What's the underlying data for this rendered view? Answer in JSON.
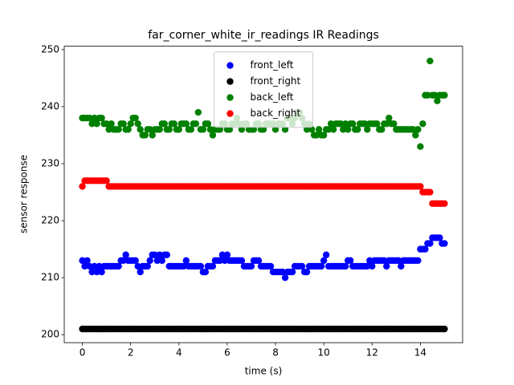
{
  "chart_data": {
    "type": "scatter",
    "title": "far_corner_white_ir_readings IR Readings",
    "x_label": "time (s)",
    "y_label": "sensor response",
    "xlim": [
      -0.75,
      15.75
    ],
    "ylim": [
      198.6,
      250.6
    ],
    "xticks": [
      0,
      2,
      4,
      6,
      8,
      10,
      12,
      14
    ],
    "yticks": [
      200,
      210,
      220,
      230,
      240,
      250
    ],
    "grid": false,
    "legend_position": "upper center",
    "x": [
      0,
      0.1,
      0.2,
      0.3,
      0.4,
      0.5,
      0.6,
      0.7,
      0.8,
      0.9,
      1,
      1.1,
      1.2,
      1.3,
      1.4,
      1.5,
      1.6,
      1.7,
      1.8,
      1.9,
      2,
      2.1,
      2.2,
      2.3,
      2.4,
      2.5,
      2.6,
      2.7,
      2.8,
      2.9,
      3,
      3.1,
      3.2,
      3.3,
      3.4,
      3.5,
      3.6,
      3.7,
      3.8,
      3.9,
      4,
      4.1,
      4.2,
      4.3,
      4.4,
      4.5,
      4.6,
      4.7,
      4.8,
      4.9,
      5,
      5.1,
      5.2,
      5.3,
      5.4,
      5.5,
      5.6,
      5.7,
      5.8,
      5.9,
      6,
      6.1,
      6.2,
      6.3,
      6.4,
      6.5,
      6.6,
      6.7,
      6.8,
      6.9,
      7,
      7.1,
      7.2,
      7.3,
      7.4,
      7.5,
      7.6,
      7.7,
      7.8,
      7.9,
      8,
      8.1,
      8.2,
      8.3,
      8.4,
      8.5,
      8.6,
      8.7,
      8.8,
      8.9,
      9,
      9.1,
      9.2,
      9.3,
      9.4,
      9.5,
      9.6,
      9.7,
      9.8,
      9.9,
      10,
      10.1,
      10.2,
      10.3,
      10.4,
      10.5,
      10.6,
      10.7,
      10.8,
      10.9,
      11,
      11.1,
      11.2,
      11.3,
      11.4,
      11.5,
      11.6,
      11.7,
      11.8,
      11.9,
      12,
      12.1,
      12.2,
      12.3,
      12.4,
      12.5,
      12.6,
      12.7,
      12.8,
      12.9,
      13,
      13.1,
      13.2,
      13.3,
      13.4,
      13.5,
      13.6,
      13.7,
      13.8,
      13.9,
      14,
      14.1,
      14.2,
      14.3,
      14.4,
      14.5,
      14.6,
      14.7,
      14.8,
      14.9,
      15
    ],
    "series": [
      {
        "name": "front_left",
        "color": "#0000ff",
        "values": [
          213,
          212,
          213,
          212,
          211,
          212,
          211,
          212,
          211,
          212,
          212,
          212,
          212,
          212,
          212,
          212,
          213,
          213,
          214,
          213,
          213,
          213,
          213,
          212,
          211,
          212,
          212,
          212,
          213,
          214,
          214,
          213,
          214,
          213,
          214,
          214,
          212,
          212,
          212,
          212,
          212,
          212,
          212,
          213,
          212,
          212,
          212,
          212,
          212,
          212,
          211,
          211,
          212,
          212,
          212,
          213,
          213,
          213,
          214,
          213,
          214,
          213,
          213,
          213,
          213,
          213,
          213,
          212,
          212,
          212,
          212,
          213,
          213,
          213,
          212,
          212,
          212,
          212,
          212,
          211,
          211,
          211,
          211,
          211,
          210,
          211,
          211,
          211,
          212,
          212,
          212,
          212,
          211,
          211,
          212,
          212,
          212,
          212,
          212,
          212,
          213,
          214,
          212,
          212,
          212,
          212,
          212,
          212,
          212,
          212,
          213,
          213,
          212,
          212,
          212,
          212,
          212,
          212,
          212,
          213,
          212,
          213,
          213,
          213,
          213,
          213,
          212,
          213,
          213,
          213,
          213,
          213,
          212,
          213,
          213,
          213,
          213,
          213,
          213,
          213,
          215,
          215,
          215,
          216,
          216,
          217,
          217,
          217,
          217,
          216,
          216
        ]
      },
      {
        "name": "front_right",
        "color": "#000000",
        "values": [
          201,
          201,
          201,
          201,
          201,
          201,
          201,
          201,
          201,
          201,
          201,
          201,
          201,
          201,
          201,
          201,
          201,
          201,
          201,
          201,
          201,
          201,
          201,
          201,
          201,
          201,
          201,
          201,
          201,
          201,
          201,
          201,
          201,
          201,
          201,
          201,
          201,
          201,
          201,
          201,
          201,
          201,
          201,
          201,
          201,
          201,
          201,
          201,
          201,
          201,
          201,
          201,
          201,
          201,
          201,
          201,
          201,
          201,
          201,
          201,
          201,
          201,
          201,
          201,
          201,
          201,
          201,
          201,
          201,
          201,
          201,
          201,
          201,
          201,
          201,
          201,
          201,
          201,
          201,
          201,
          201,
          201,
          201,
          201,
          201,
          201,
          201,
          201,
          201,
          201,
          201,
          201,
          201,
          201,
          201,
          201,
          201,
          201,
          201,
          201,
          201,
          201,
          201,
          201,
          201,
          201,
          201,
          201,
          201,
          201,
          201,
          201,
          201,
          201,
          201,
          201,
          201,
          201,
          201,
          201,
          201,
          201,
          201,
          201,
          201,
          201,
          201,
          201,
          201,
          201,
          201,
          201,
          201,
          201,
          201,
          201,
          201,
          201,
          201,
          201,
          201,
          201,
          201,
          201,
          201,
          201,
          201,
          201,
          201,
          201,
          201
        ]
      },
      {
        "name": "back_left",
        "color": "#008000",
        "values": [
          238,
          238,
          238,
          238,
          237,
          238,
          237,
          238,
          238,
          237,
          237,
          236,
          237,
          236,
          236,
          236,
          237,
          237,
          236,
          236,
          237,
          238,
          238,
          237,
          236,
          235,
          235,
          236,
          236,
          235,
          236,
          236,
          236,
          237,
          237,
          236,
          236,
          237,
          237,
          236,
          236,
          237,
          237,
          237,
          236,
          236,
          237,
          237,
          239,
          236,
          236,
          237,
          237,
          236,
          235,
          236,
          236,
          236,
          237,
          237,
          236,
          236,
          237,
          237,
          238,
          237,
          236,
          237,
          237,
          236,
          236,
          236,
          237,
          237,
          236,
          236,
          237,
          237,
          237,
          237,
          236,
          237,
          237,
          237,
          236,
          238,
          238,
          237,
          238,
          239,
          239,
          238,
          237,
          236,
          237,
          236,
          235,
          235,
          236,
          235,
          235,
          236,
          236,
          237,
          236,
          237,
          237,
          237,
          236,
          237,
          236,
          237,
          237,
          236,
          236,
          237,
          237,
          237,
          236,
          237,
          237,
          237,
          237,
          236,
          236,
          237,
          237,
          238,
          237,
          237,
          236,
          236,
          236,
          236,
          236,
          236,
          236,
          236,
          235,
          236,
          233,
          237,
          242,
          242,
          248,
          242,
          242,
          241,
          242,
          242,
          242
        ]
      },
      {
        "name": "back_right",
        "color": "#ff0000",
        "values": [
          226,
          227,
          227,
          227,
          227,
          227,
          227,
          227,
          227,
          227,
          227,
          226,
          226,
          226,
          226,
          226,
          226,
          226,
          226,
          226,
          226,
          226,
          226,
          226,
          226,
          226,
          226,
          226,
          226,
          226,
          226,
          226,
          226,
          226,
          226,
          226,
          226,
          226,
          226,
          226,
          226,
          226,
          226,
          226,
          226,
          226,
          226,
          226,
          226,
          226,
          226,
          226,
          226,
          226,
          226,
          226,
          226,
          226,
          226,
          226,
          226,
          226,
          226,
          226,
          226,
          226,
          226,
          226,
          226,
          226,
          226,
          226,
          226,
          226,
          226,
          226,
          226,
          226,
          226,
          226,
          226,
          226,
          226,
          226,
          226,
          226,
          226,
          226,
          226,
          226,
          226,
          226,
          226,
          226,
          226,
          226,
          226,
          226,
          226,
          226,
          226,
          226,
          226,
          226,
          226,
          226,
          226,
          226,
          226,
          226,
          226,
          226,
          226,
          226,
          226,
          226,
          226,
          226,
          226,
          226,
          226,
          226,
          226,
          226,
          226,
          226,
          226,
          226,
          226,
          226,
          226,
          226,
          226,
          226,
          226,
          226,
          226,
          226,
          226,
          226,
          226,
          225,
          225,
          225,
          225,
          223,
          223,
          223,
          223,
          223,
          223
        ]
      }
    ]
  }
}
